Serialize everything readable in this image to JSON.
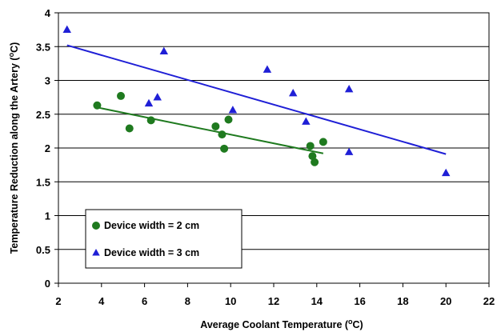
{
  "chart_data": {
    "type": "scatter",
    "xlabel": "Average Coolant Temperature (",
    "xlabel_sup": "o",
    "xlabel_end": "C)",
    "ylabel": "Temperature Reduction along the Artery (",
    "ylabel_sup": "o",
    "ylabel_end": "C)",
    "xlim": [
      2,
      22
    ],
    "ylim": [
      0,
      4
    ],
    "xticks": [
      2,
      4,
      6,
      8,
      10,
      12,
      14,
      16,
      18,
      20,
      22
    ],
    "yticks": [
      0,
      0.5,
      1,
      1.5,
      2,
      2.5,
      3,
      3.5,
      4
    ],
    "xtick_labels": [
      "2",
      "4",
      "6",
      "8",
      "10",
      "12",
      "14",
      "16",
      "18",
      "20",
      "22"
    ],
    "ytick_labels": [
      "0",
      "0.5",
      "1",
      "1.5",
      "2",
      "2.5",
      "3",
      "3.5",
      "4"
    ],
    "grid": "horizontal",
    "legend_position": "lower-left",
    "series": [
      {
        "name": "Device width = 2 cm",
        "marker": "circle",
        "color": "#1f7a1f",
        "points": [
          [
            3.8,
            2.63
          ],
          [
            4.9,
            2.77
          ],
          [
            5.3,
            2.29
          ],
          [
            6.3,
            2.41
          ],
          [
            9.3,
            2.32
          ],
          [
            9.6,
            2.2
          ],
          [
            9.7,
            1.99
          ],
          [
            9.9,
            2.42
          ],
          [
            13.7,
            2.03
          ],
          [
            13.8,
            1.88
          ],
          [
            13.9,
            1.79
          ],
          [
            14.3,
            2.09
          ]
        ],
        "trendline": [
          [
            3.8,
            2.6
          ],
          [
            14.3,
            1.92
          ]
        ]
      },
      {
        "name": "Device width = 3 cm",
        "marker": "triangle",
        "color": "#1f1fd6",
        "points": [
          [
            2.4,
            3.75
          ],
          [
            6.2,
            2.66
          ],
          [
            6.6,
            2.75
          ],
          [
            6.9,
            3.43
          ],
          [
            10.1,
            2.56
          ],
          [
            11.7,
            3.16
          ],
          [
            12.9,
            2.81
          ],
          [
            13.5,
            2.39
          ],
          [
            15.5,
            2.87
          ],
          [
            15.5,
            1.94
          ],
          [
            20.0,
            1.63
          ]
        ],
        "trendline": [
          [
            2.4,
            3.52
          ],
          [
            20.0,
            1.91
          ]
        ]
      }
    ]
  }
}
